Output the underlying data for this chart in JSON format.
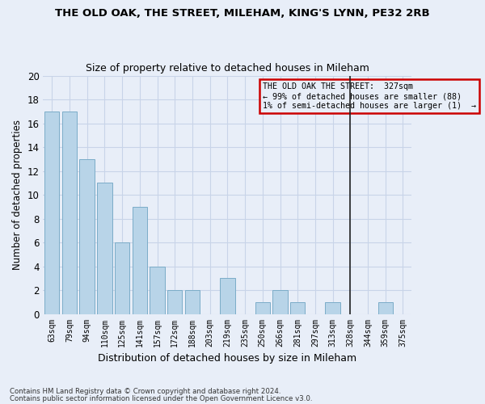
{
  "title1": "THE OLD OAK, THE STREET, MILEHAM, KING'S LYNN, PE32 2RB",
  "title2": "Size of property relative to detached houses in Mileham",
  "xlabel": "Distribution of detached houses by size in Mileham",
  "ylabel": "Number of detached properties",
  "categories": [
    "63sqm",
    "79sqm",
    "94sqm",
    "110sqm",
    "125sqm",
    "141sqm",
    "157sqm",
    "172sqm",
    "188sqm",
    "203sqm",
    "219sqm",
    "235sqm",
    "250sqm",
    "266sqm",
    "281sqm",
    "297sqm",
    "313sqm",
    "328sqm",
    "344sqm",
    "359sqm",
    "375sqm"
  ],
  "values": [
    17,
    17,
    13,
    11,
    6,
    9,
    4,
    2,
    2,
    0,
    3,
    0,
    1,
    2,
    1,
    0,
    1,
    0,
    0,
    1,
    0
  ],
  "bar_color": "#b8d4e8",
  "bar_edge_color": "#7bacc8",
  "grid_color": "#c8d4e8",
  "background_color": "#e8eef8",
  "vline_index": 17,
  "vline_color": "#222222",
  "annotation_text": "THE OLD OAK THE STREET:  327sqm\n← 99% of detached houses are smaller (88)\n1% of semi-detached houses are larger (1)  →",
  "annotation_box_color": "#cc0000",
  "ylim": [
    0,
    20
  ],
  "yticks": [
    0,
    2,
    4,
    6,
    8,
    10,
    12,
    14,
    16,
    18,
    20
  ],
  "footer1": "Contains HM Land Registry data © Crown copyright and database right 2024.",
  "footer2": "Contains public sector information licensed under the Open Government Licence v3.0."
}
